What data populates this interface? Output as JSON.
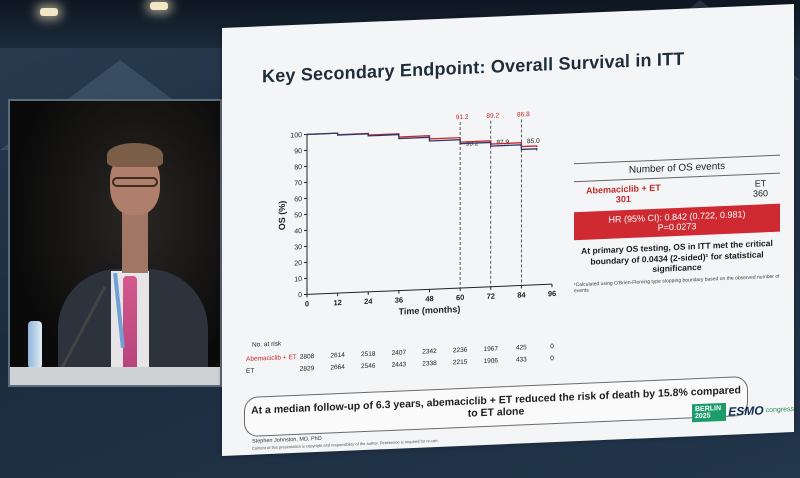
{
  "slide": {
    "title": "Key Secondary Endpoint: Overall Survival in ITT",
    "events_header": "Number of OS events",
    "arm_a_label": "Abemaciclib + ET",
    "arm_a_events": "301",
    "arm_b_label": "ET",
    "arm_b_events": "360",
    "hr_line1": "HR (95% CI): 0.842 (0.722, 0.981)",
    "hr_line2": "P=0.0273",
    "conclusion": "At primary OS testing, OS in ITT met the critical boundary of 0.0434 (2-sided)¹ for statistical significance",
    "footnote": "¹Calculated using O'Brien-Fleming type stopping boundary based on the observed number of events",
    "takeaway": "At a median follow-up of 6.3 years, abemaciclib + ET  reduced the risk of death by 15.8% compared to ET alone",
    "author": "Stephen Johnston, MD, PhD",
    "disclaimer": "Content of this presentation is copyright and responsibility of the author. Permission is required for re-use.",
    "logo_mark": "BERLIN 2025",
    "logo_text": "ESMO",
    "logo_sub": "congress"
  },
  "risk_table": {
    "header": "No. at risk",
    "rows": [
      {
        "label": "Abemaciclib + ET",
        "values": [
          "2808",
          "2614",
          "2518",
          "2407",
          "2342",
          "2236",
          "1967",
          "425",
          "0"
        ]
      },
      {
        "label": "ET",
        "values": [
          "2829",
          "2664",
          "2546",
          "2443",
          "2338",
          "2215",
          "1906",
          "433",
          "0"
        ]
      }
    ]
  },
  "chart_data": {
    "type": "line",
    "title": "",
    "xlabel": "Time (months)",
    "ylabel": "OS (%)",
    "x_ticks": [
      0,
      12,
      24,
      36,
      48,
      60,
      72,
      84,
      96
    ],
    "y_ticks": [
      0,
      10,
      20,
      30,
      40,
      50,
      60,
      70,
      80,
      90,
      100
    ],
    "xlim": [
      0,
      96
    ],
    "ylim": [
      0,
      100
    ],
    "series": [
      {
        "name": "Abemaciclib + ET",
        "color": "#c9262d",
        "x": [
          0,
          12,
          24,
          36,
          48,
          60,
          72,
          84,
          90
        ],
        "y": [
          100,
          99,
          98,
          96,
          94,
          91.2,
          89.2,
          86.8,
          86
        ]
      },
      {
        "name": "ET",
        "color": "#2b3a67",
        "x": [
          0,
          12,
          24,
          36,
          48,
          60,
          72,
          84,
          90
        ],
        "y": [
          100,
          98.8,
          97.5,
          95,
          92.7,
          90.2,
          87.9,
          85.0,
          84
        ]
      }
    ],
    "annotations": [
      {
        "x": 60,
        "top": "91.2",
        "bottom": "90.2"
      },
      {
        "x": 72,
        "top": "89.2",
        "bottom": "87.9"
      },
      {
        "x": 84,
        "top": "86.8",
        "bottom": "85.0"
      }
    ]
  }
}
